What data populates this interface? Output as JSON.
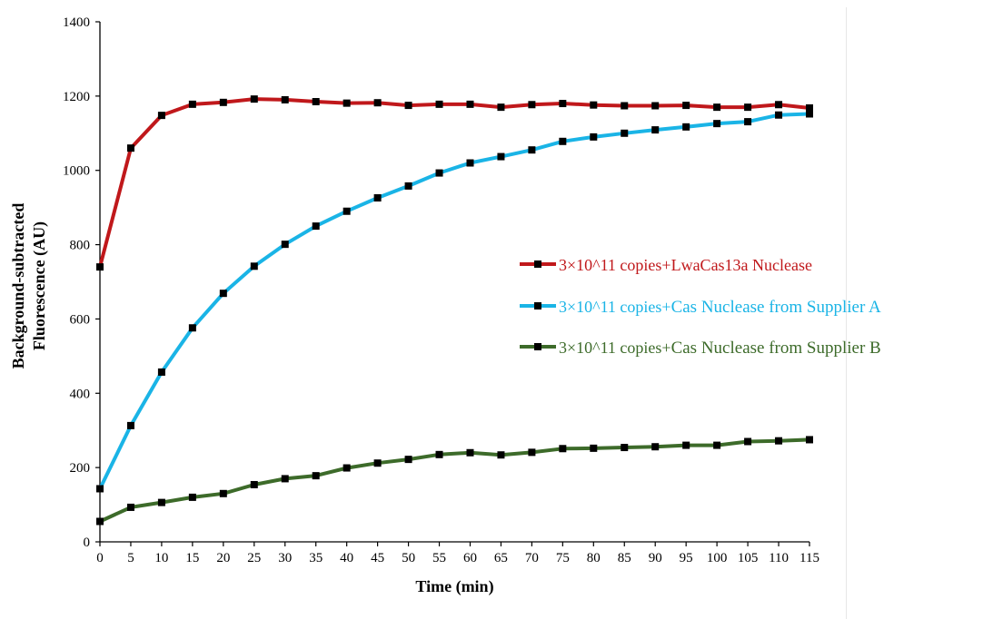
{
  "chart_data": {
    "type": "line",
    "x": [
      0,
      5,
      10,
      15,
      20,
      25,
      30,
      35,
      40,
      45,
      50,
      55,
      60,
      65,
      70,
      75,
      80,
      85,
      90,
      95,
      100,
      105,
      110,
      115
    ],
    "x_tick_labels": [
      "0",
      "5",
      "10",
      "15",
      "20",
      "25",
      "30",
      "35",
      "40",
      "45",
      "50",
      "55",
      "60",
      "65",
      "70",
      "75",
      "80",
      "85",
      "90",
      "95",
      "100",
      "105",
      "110",
      "115"
    ],
    "xlabel": "Time (min)",
    "ylabel_lines": [
      "Background-subtracted",
      "Fluorescence (AU)"
    ],
    "ylim": [
      0,
      1400
    ],
    "y_ticks": [
      0,
      200,
      400,
      600,
      800,
      1000,
      1200,
      1400
    ],
    "y_tick_labels": [
      "0",
      "200",
      "400",
      "600",
      "800",
      "1000",
      "1200",
      "1400"
    ],
    "grid": false,
    "legend_position": "right",
    "series": [
      {
        "name": "3×10^11 copies+LwaCas13a Nuclease",
        "legend_parts": [
          "3×10^11 copies+",
          "LwaCas13a Nuclease"
        ],
        "color": "#c0181b",
        "values": [
          740,
          1060,
          1148,
          1178,
          1183,
          1192,
          1190,
          1185,
          1181,
          1182,
          1175,
          1178,
          1178,
          1170,
          1177,
          1180,
          1176,
          1174,
          1174,
          1175,
          1170,
          1170,
          1177,
          1168
        ]
      },
      {
        "name": "3×10^11 copies+Cas Nuclease from Supplier A",
        "legend_parts": [
          "3×10^11 copies+",
          "Cas Nuclease from Supplier A"
        ],
        "color": "#1ab4e6",
        "values": [
          143,
          313,
          457,
          576,
          669,
          742,
          801,
          850,
          890,
          926,
          958,
          993,
          1020,
          1037,
          1055,
          1078,
          1090,
          1100,
          1109,
          1117,
          1126,
          1131,
          1149,
          1152
        ]
      },
      {
        "name": "3×10^11 copies+Cas Nuclease from Supplier B",
        "legend_parts": [
          "3×10^11 copies+",
          "Cas Nuclease from Supplier B"
        ],
        "color": "#3d6b2a",
        "values": [
          55,
          93,
          106,
          120,
          130,
          154,
          170,
          178,
          199,
          212,
          222,
          235,
          240,
          234,
          241,
          251,
          252,
          254,
          256,
          260,
          260,
          270,
          272,
          275
        ]
      }
    ]
  }
}
